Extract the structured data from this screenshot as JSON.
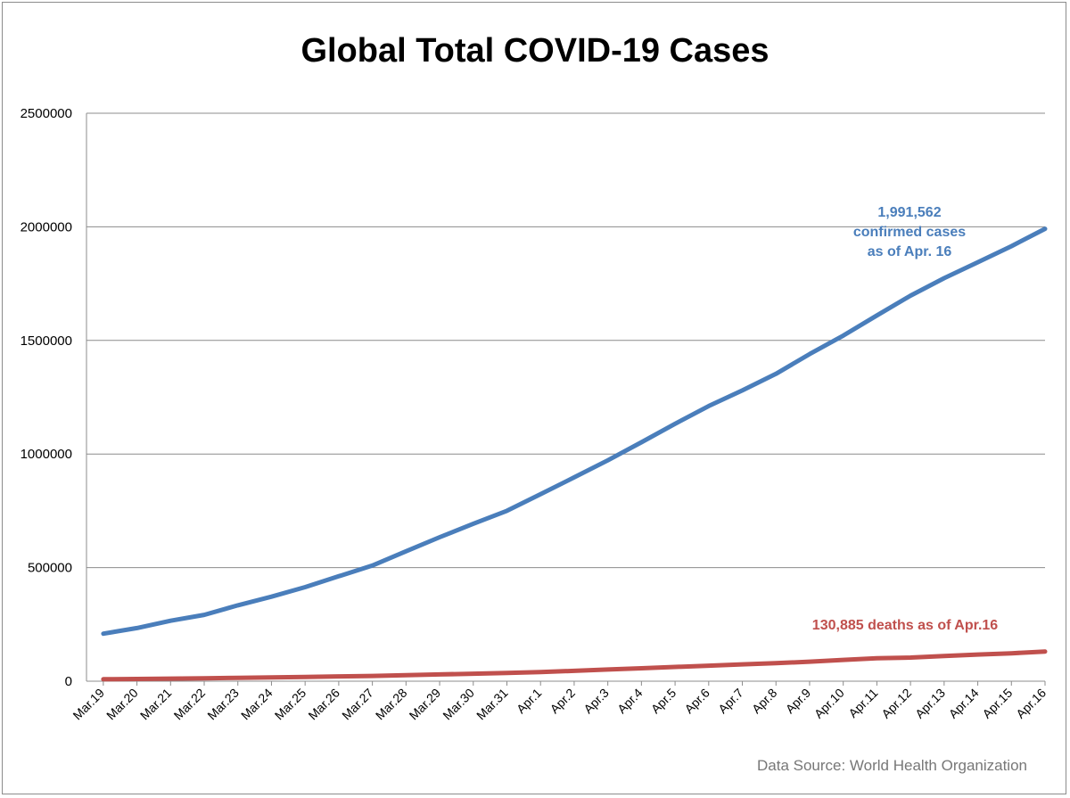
{
  "chart_data": {
    "type": "line",
    "title": "Global Total COVID-19 Cases",
    "xlabel": "",
    "ylabel": "",
    "ylim": [
      0,
      2500000
    ],
    "yticks": [
      "0",
      "500000",
      "1000000",
      "1500000",
      "2000000",
      "2500000"
    ],
    "grid": true,
    "categories": [
      "Mar.19",
      "Mar.20",
      "Mar.21",
      "Mar.22",
      "Mar.23",
      "Mar.24",
      "Mar.25",
      "Mar.26",
      "Mar.27",
      "Mar.28",
      "Mar.29",
      "Mar.30",
      "Mar.31",
      "Apr.1",
      "Apr.2",
      "Apr.3",
      "Apr.4",
      "Apr.5",
      "Apr.6",
      "Apr.7",
      "Apr.8",
      "Apr.9",
      "Apr.10",
      "Apr.11",
      "Apr.12",
      "Apr.13",
      "Apr.14",
      "Apr.15",
      "Apr.16"
    ],
    "series": [
      {
        "name": "",
        "color": "#4a7ebb",
        "values": [
          209000,
          234000,
          266000,
          292000,
          334000,
          372000,
          414000,
          462000,
          509000,
          572000,
          634000,
          693000,
          750000,
          823000,
          897000,
          972000,
          1052000,
          1133000,
          1211000,
          1280000,
          1353000,
          1440000,
          1521000,
          1610000,
          1697000,
          1774000,
          1844000,
          1915000,
          1991562
        ]
      },
      {
        "name": "",
        "color": "#c0504d",
        "values": [
          8800,
          10000,
          11200,
          12900,
          14600,
          16300,
          18400,
          21000,
          23300,
          26500,
          29700,
          33100,
          36400,
          40600,
          45500,
          51500,
          56900,
          62800,
          68400,
          74200,
          79100,
          86000,
          93900,
          100800,
          104000,
          110500,
          117200,
          123000,
          130885
        ]
      }
    ],
    "annotations": {
      "cases_line1": "1,991,562",
      "cases_line2": "confirmed cases",
      "cases_line3": "as of Apr. 16",
      "deaths": "130,885 deaths as of Apr.16"
    },
    "source": "Data Source: World Health Organization"
  }
}
